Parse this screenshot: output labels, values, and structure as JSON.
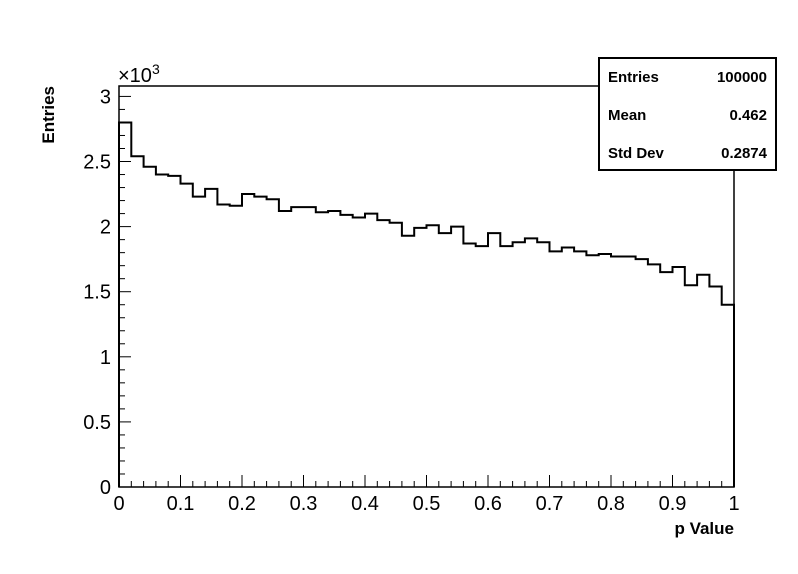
{
  "chart_data": {
    "type": "histogram",
    "title": "",
    "xlabel": "p Value",
    "ylabel": "Entries",
    "y_multiplier_label": "×10",
    "y_multiplier_exponent": "3",
    "xlim": [
      0,
      1
    ],
    "ylim": [
      0,
      3.08
    ],
    "bin_edges_start": 0,
    "bin_width": 0.02,
    "x_ticks": [
      "0",
      "0.1",
      "0.2",
      "0.3",
      "0.4",
      "0.5",
      "0.6",
      "0.7",
      "0.8",
      "0.9",
      "1"
    ],
    "x_tick_values": [
      0,
      0.1,
      0.2,
      0.3,
      0.4,
      0.5,
      0.6,
      0.7,
      0.8,
      0.9,
      1.0
    ],
    "y_ticks": [
      "0",
      "0.5",
      "1",
      "1.5",
      "2",
      "2.5",
      "3"
    ],
    "y_tick_values": [
      0,
      0.5,
      1.0,
      1.5,
      2.0,
      2.5,
      3.0
    ],
    "values": [
      2.8,
      2.54,
      2.46,
      2.4,
      2.39,
      2.33,
      2.23,
      2.29,
      2.17,
      2.16,
      2.25,
      2.23,
      2.21,
      2.12,
      2.15,
      2.15,
      2.11,
      2.12,
      2.09,
      2.07,
      2.1,
      2.05,
      2.03,
      1.93,
      1.99,
      2.01,
      1.95,
      2.0,
      1.87,
      1.85,
      1.95,
      1.85,
      1.88,
      1.91,
      1.88,
      1.81,
      1.84,
      1.81,
      1.78,
      1.79,
      1.77,
      1.77,
      1.75,
      1.71,
      1.65,
      1.69,
      1.55,
      1.63,
      1.54,
      1.4
    ],
    "stats": [
      {
        "label": "Entries",
        "value": "100000"
      },
      {
        "label": "Mean",
        "value": "0.462"
      },
      {
        "label": "Std Dev",
        "value": "0.2874"
      }
    ]
  }
}
